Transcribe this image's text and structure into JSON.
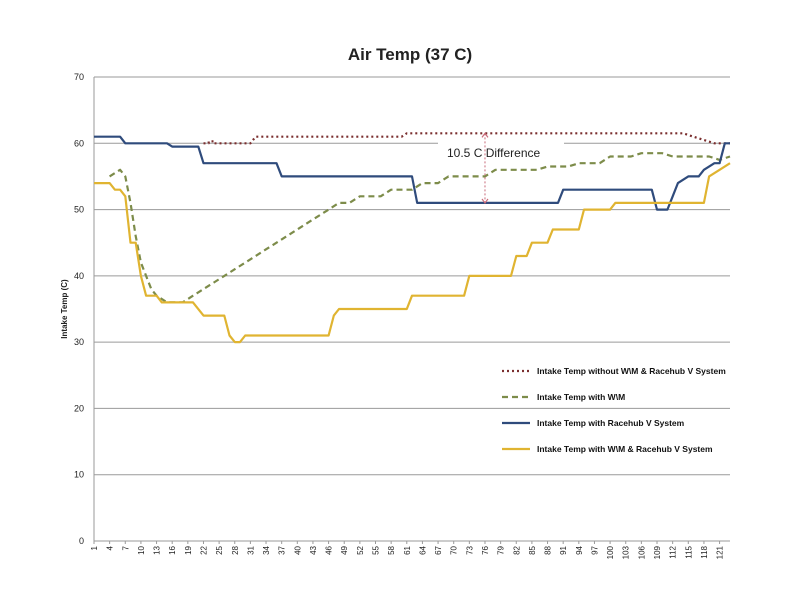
{
  "chart_data": {
    "type": "line",
    "title": "Air Temp (37 C)",
    "xlabel": "",
    "ylabel": "Intake Temp (C)",
    "ylim": [
      0,
      70
    ],
    "yticks": [
      0,
      10,
      20,
      30,
      40,
      50,
      60,
      70
    ],
    "xlim": [
      1,
      123
    ],
    "xticks": [
      1,
      4,
      7,
      10,
      13,
      16,
      19,
      22,
      25,
      28,
      31,
      34,
      37,
      40,
      43,
      46,
      49,
      52,
      55,
      58,
      61,
      64,
      67,
      70,
      73,
      76,
      79,
      82,
      85,
      88,
      91,
      94,
      97,
      100,
      103,
      106,
      109,
      112,
      115,
      118,
      121
    ],
    "grid": true,
    "legend_position": "right",
    "annotation": {
      "text": "10.5 C Difference",
      "x": 76,
      "y_top": 61.5,
      "y_bottom": 51
    },
    "series": [
      {
        "name": "Intake Temp without W\\M & Racehub V System",
        "style": "dotted",
        "color": "#7a2e2e",
        "points": [
          [
            22,
            60
          ],
          [
            23,
            60
          ],
          [
            23,
            60.3
          ],
          [
            24,
            60.3
          ],
          [
            24,
            60
          ],
          [
            31,
            60
          ],
          [
            32,
            61
          ],
          [
            60,
            61
          ],
          [
            61,
            61.5
          ],
          [
            114,
            61.5
          ],
          [
            116,
            61
          ],
          [
            118,
            60.5
          ],
          [
            120,
            60
          ],
          [
            123,
            60
          ]
        ]
      },
      {
        "name": "Intake Temp with W\\M",
        "style": "dashed",
        "color": "#7d8c4a",
        "points": [
          [
            4,
            55
          ],
          [
            6,
            56
          ],
          [
            7,
            55
          ],
          [
            8,
            51
          ],
          [
            9,
            46
          ],
          [
            10,
            42
          ],
          [
            11,
            40
          ],
          [
            12,
            38
          ],
          [
            13,
            37
          ],
          [
            15,
            36
          ],
          [
            18,
            36
          ],
          [
            19,
            36.5
          ],
          [
            20,
            37
          ],
          [
            22,
            38
          ],
          [
            24,
            39
          ],
          [
            26,
            40
          ],
          [
            28,
            41
          ],
          [
            30,
            42
          ],
          [
            32,
            43
          ],
          [
            34,
            44
          ],
          [
            36,
            45
          ],
          [
            38,
            46
          ],
          [
            40,
            47
          ],
          [
            42,
            48
          ],
          [
            44,
            49
          ],
          [
            46,
            50
          ],
          [
            48,
            51
          ],
          [
            50,
            51
          ],
          [
            52,
            52
          ],
          [
            56,
            52
          ],
          [
            58,
            53
          ],
          [
            62,
            53
          ],
          [
            64,
            54
          ],
          [
            67,
            54
          ],
          [
            69,
            55
          ],
          [
            73,
            55
          ],
          [
            76,
            55
          ],
          [
            78,
            56
          ],
          [
            86,
            56
          ],
          [
            88,
            56.5
          ],
          [
            92,
            56.5
          ],
          [
            94,
            57
          ],
          [
            98,
            57
          ],
          [
            100,
            58
          ],
          [
            104,
            58
          ],
          [
            106,
            58.5
          ],
          [
            110,
            58.5
          ],
          [
            112,
            58
          ],
          [
            119,
            58
          ],
          [
            121,
            57.5
          ],
          [
            123,
            58
          ]
        ]
      },
      {
        "name": "Intake Temp with Racehub V System",
        "style": "solid",
        "color": "#2f4b7c",
        "points": [
          [
            1,
            61
          ],
          [
            6,
            61
          ],
          [
            7,
            60
          ],
          [
            15,
            60
          ],
          [
            16,
            59.5
          ],
          [
            21,
            59.5
          ],
          [
            22,
            57
          ],
          [
            36,
            57
          ],
          [
            37,
            55
          ],
          [
            62,
            55
          ],
          [
            63,
            51
          ],
          [
            90,
            51
          ],
          [
            91,
            53
          ],
          [
            108,
            53
          ],
          [
            109,
            50
          ],
          [
            111,
            50
          ],
          [
            112,
            52
          ],
          [
            113,
            54
          ],
          [
            115,
            55
          ],
          [
            117,
            55
          ],
          [
            118,
            56
          ],
          [
            120,
            57
          ],
          [
            121,
            57
          ],
          [
            122,
            60
          ],
          [
            123,
            60
          ]
        ]
      },
      {
        "name": "Intake Temp with W\\M & Racehub V System",
        "style": "solid",
        "color": "#e0b431",
        "points": [
          [
            1,
            54
          ],
          [
            4,
            54
          ],
          [
            5,
            53
          ],
          [
            6,
            53
          ],
          [
            7,
            52
          ],
          [
            8,
            45
          ],
          [
            9,
            45
          ],
          [
            10,
            40
          ],
          [
            11,
            37
          ],
          [
            13,
            37
          ],
          [
            14,
            36
          ],
          [
            20,
            36
          ],
          [
            22,
            34
          ],
          [
            26,
            34
          ],
          [
            27,
            31
          ],
          [
            28,
            30
          ],
          [
            29,
            30
          ],
          [
            30,
            31
          ],
          [
            46,
            31
          ],
          [
            47,
            34
          ],
          [
            48,
            35
          ],
          [
            61,
            35
          ],
          [
            62,
            37
          ],
          [
            72,
            37
          ],
          [
            73,
            40
          ],
          [
            81,
            40
          ],
          [
            82,
            43
          ],
          [
            84,
            43
          ],
          [
            85,
            45
          ],
          [
            88,
            45
          ],
          [
            89,
            47
          ],
          [
            94,
            47
          ],
          [
            95,
            50
          ],
          [
            100,
            50
          ],
          [
            101,
            51
          ],
          [
            118,
            51
          ],
          [
            119,
            55
          ],
          [
            121,
            56
          ],
          [
            123,
            57
          ]
        ]
      }
    ]
  }
}
